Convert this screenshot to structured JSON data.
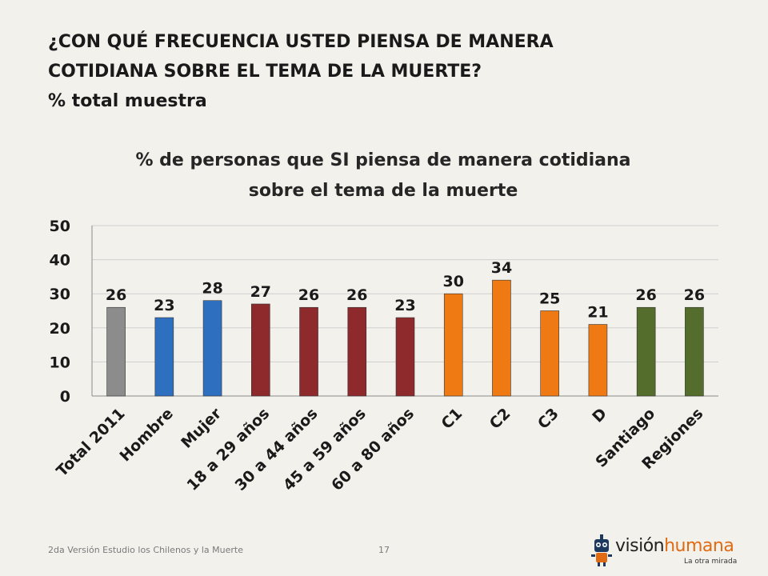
{
  "slide": {
    "title_line1": "¿CON QUÉ FRECUENCIA USTED PIENSA DE MANERA",
    "title_line2": "COTIDIANA SOBRE EL TEMA DE LA MUERTE?",
    "subtitle": "% total muestra",
    "footer": "2da Versión Estudio los Chilenos y la Muerte",
    "page_number": "17",
    "logo_text_part1": "visión",
    "logo_text_part2": "humana",
    "logo_tagline": "La otra mirada"
  },
  "chart_data": {
    "type": "bar",
    "title": "% de personas que SI piensa de manera cotidiana sobre el tema de la muerte",
    "title_lines": [
      "% de personas que SI piensa de manera cotidiana",
      "sobre el tema de la muerte"
    ],
    "categories": [
      "Total 2011",
      "Hombre",
      "Mujer",
      "18 a 29 años",
      "30 a 44 años",
      "45 a 59 años",
      "60 a 80 años",
      "C1",
      "C2",
      "C3",
      "D",
      "Santiago",
      "Regiones"
    ],
    "values": [
      26,
      23,
      28,
      27,
      26,
      26,
      23,
      30,
      34,
      25,
      21,
      26,
      26
    ],
    "colors": [
      "#8c8c8c",
      "#2e6fc0",
      "#2e6fc0",
      "#8e2a2c",
      "#8e2a2c",
      "#8e2a2c",
      "#8e2a2c",
      "#ef7a14",
      "#ef7a14",
      "#ef7a14",
      "#ef7a14",
      "#546c2c",
      "#546c2c"
    ],
    "data_labels": true,
    "ylim": [
      0,
      50
    ],
    "yticks": [
      0,
      10,
      20,
      30,
      40,
      50
    ],
    "grid": true,
    "legend": "none"
  }
}
